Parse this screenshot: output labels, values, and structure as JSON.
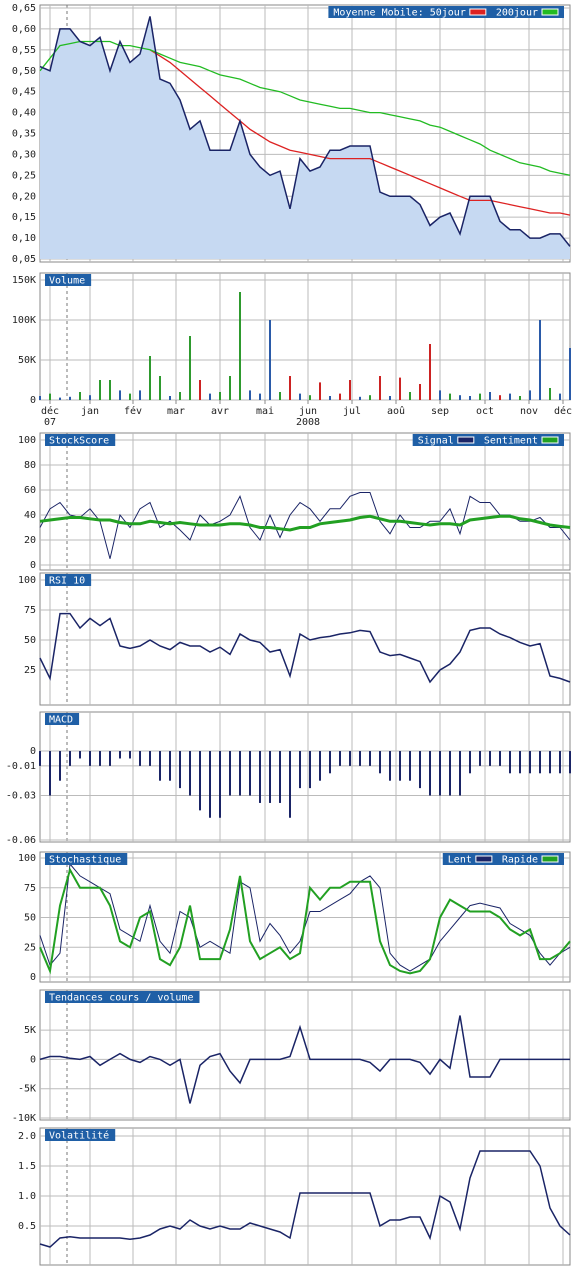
{
  "chart_data": [
    {
      "type": "area",
      "title": "Moyenne Mobile:",
      "color": "#1a2466",
      "fill": "#c6d9f2",
      "legend": "top-right",
      "grid": true,
      "values": [
        0.51,
        0.5,
        0.6,
        0.6,
        0.57,
        0.56,
        0.58,
        0.5,
        0.57,
        0.52,
        0.54,
        0.63,
        0.48,
        0.47,
        0.43,
        0.36,
        0.38,
        0.31,
        0.31,
        0.31,
        0.38,
        0.3,
        0.27,
        0.25,
        0.26,
        0.17,
        0.29,
        0.26,
        0.27,
        0.31,
        0.31,
        0.32,
        0.32,
        0.32,
        0.21,
        0.2,
        0.2,
        0.2,
        0.18,
        0.13,
        0.15,
        0.16,
        0.11,
        0.2,
        0.2,
        0.2,
        0.14,
        0.12,
        0.12,
        0.1,
        0.1,
        0.11,
        0.11,
        0.08
      ],
      "series": [
        {
          "name": "50jour",
          "color": "#dd2222",
          "values": [
            null,
            null,
            null,
            null,
            null,
            null,
            null,
            null,
            null,
            null,
            null,
            0.55,
            0.535,
            0.52,
            0.5,
            0.48,
            0.46,
            0.44,
            0.42,
            0.4,
            0.38,
            0.36,
            0.345,
            0.33,
            0.32,
            0.31,
            0.305,
            0.3,
            0.295,
            0.29,
            0.29,
            0.29,
            0.29,
            0.29,
            0.28,
            0.27,
            0.26,
            0.25,
            0.24,
            0.23,
            0.22,
            0.21,
            0.2,
            0.19,
            0.19,
            0.19,
            0.185,
            0.18,
            0.175,
            0.17,
            0.165,
            0.16,
            0.16,
            0.155
          ]
        },
        {
          "name": "200jour",
          "color": "#22bb22",
          "values": [
            0.5,
            0.53,
            0.56,
            0.565,
            0.57,
            0.57,
            0.57,
            0.57,
            0.56,
            0.56,
            0.555,
            0.55,
            0.54,
            0.53,
            0.52,
            0.515,
            0.51,
            0.5,
            0.49,
            0.485,
            0.48,
            0.47,
            0.46,
            0.455,
            0.45,
            0.44,
            0.43,
            0.425,
            0.42,
            0.415,
            0.41,
            0.41,
            0.405,
            0.4,
            0.4,
            0.395,
            0.39,
            0.385,
            0.38,
            0.37,
            0.365,
            0.355,
            0.345,
            0.335,
            0.325,
            0.31,
            0.3,
            0.29,
            0.28,
            0.275,
            0.27,
            0.26,
            0.255,
            0.25
          ]
        }
      ],
      "ylim": [
        0.05,
        0.65
      ],
      "yticks": [
        {
          "value": 0.05,
          "label": "0,05"
        },
        {
          "value": 0.1,
          "label": "0,10"
        },
        {
          "value": 0.15,
          "label": "0,15"
        },
        {
          "value": 0.2,
          "label": "0,20"
        },
        {
          "value": 0.25,
          "label": "0,25"
        },
        {
          "value": 0.3,
          "label": "0,30"
        },
        {
          "value": 0.35,
          "label": "0,35"
        },
        {
          "value": 0.4,
          "label": "0,40"
        },
        {
          "value": 0.45,
          "label": "0,45"
        },
        {
          "value": 0.5,
          "label": "0,50"
        },
        {
          "value": 0.55,
          "label": "0,55"
        },
        {
          "value": 0.6,
          "label": "0,60"
        },
        {
          "value": 0.65,
          "label": "0,65"
        }
      ]
    },
    {
      "type": "bar",
      "title": "Volume",
      "grid": true,
      "values": [
        5000,
        8000,
        3000,
        4000,
        10000,
        6000,
        25000,
        25000,
        12000,
        8000,
        12000,
        55000,
        30000,
        5000,
        10000,
        80000,
        25000,
        8000,
        10000,
        30000,
        135000,
        12000,
        8000,
        100000,
        10000,
        30000,
        8000,
        6000,
        22000,
        5000,
        8000,
        25000,
        4000,
        6000,
        30000,
        5000,
        28000,
        10000,
        20000,
        70000,
        12000,
        8000,
        6000,
        5000,
        8000,
        10000,
        6000,
        8000,
        5000,
        12000,
        100000,
        15000,
        8000,
        65000
      ],
      "colors": [
        "#2a5aa8",
        "#2e9a2e",
        "#2a5aa8",
        "#2a5aa8",
        "#2e9a2e",
        "#2a5aa8",
        "#2e9a2e",
        "#2e9a2e",
        "#2a5aa8",
        "#2e9a2e",
        "#2a5aa8",
        "#2e9a2e",
        "#2e9a2e",
        "#2a5aa8",
        "#2e9a2e",
        "#2e9a2e",
        "#cc2222",
        "#2a5aa8",
        "#2e9a2e",
        "#2e9a2e",
        "#2e9a2e",
        "#2a5aa8",
        "#2a5aa8",
        "#2a5aa8",
        "#2e9a2e",
        "#cc2222",
        "#2a5aa8",
        "#2e9a2e",
        "#cc2222",
        "#2a5aa8",
        "#cc2222",
        "#cc2222",
        "#2a5aa8",
        "#2e9a2e",
        "#cc2222",
        "#2a5aa8",
        "#cc2222",
        "#2e9a2e",
        "#cc2222",
        "#cc2222",
        "#2a5aa8",
        "#2e9a2e",
        "#2a5aa8",
        "#2a5aa8",
        "#2e9a2e",
        "#2a5aa8",
        "#cc2222",
        "#2a5aa8",
        "#2e9a2e",
        "#2a5aa8",
        "#2a5aa8",
        "#2e9a2e",
        "#2a5aa8",
        "#2a5aa8"
      ],
      "ylim": [
        0,
        150000
      ],
      "yticks": [
        0,
        {
          "value": 50000,
          "label": "50K"
        },
        {
          "value": 100000,
          "label": "100K"
        },
        {
          "value": 150000,
          "label": "150K"
        }
      ],
      "xticks": [
        {
          "value": 1,
          "label": "déc",
          "sublabel": "07"
        },
        {
          "value": 5,
          "label": "jan"
        },
        {
          "value": 9.3,
          "label": "fév"
        },
        {
          "value": 13.6,
          "label": "mar"
        },
        {
          "value": 18,
          "label": "avr"
        },
        {
          "value": 22.5,
          "label": "mai"
        },
        {
          "value": 26.8,
          "label": "jun",
          "sublabel": "2008"
        },
        {
          "value": 31.2,
          "label": "jul"
        },
        {
          "value": 35.6,
          "label": "aoû"
        },
        {
          "value": 40,
          "label": "sep"
        },
        {
          "value": 44.5,
          "label": "oct"
        },
        {
          "value": 48.9,
          "label": "nov"
        },
        {
          "value": 52.3,
          "label": "déc"
        }
      ]
    },
    {
      "type": "line",
      "title": "StockScore",
      "legend": "top-right",
      "grid": true,
      "series": [
        {
          "name": "Signal",
          "color": "#1a2466",
          "width": 1,
          "values": [
            30,
            45,
            50,
            40,
            38,
            45,
            35,
            5,
            40,
            30,
            45,
            50,
            30,
            35,
            28,
            20,
            40,
            32,
            35,
            40,
            55,
            30,
            20,
            40,
            22,
            40,
            50,
            45,
            35,
            45,
            45,
            55,
            58,
            58,
            35,
            25,
            40,
            30,
            30,
            35,
            35,
            45,
            25,
            55,
            50,
            50,
            40,
            40,
            35,
            35,
            38,
            30,
            30,
            20
          ]
        },
        {
          "name": "Sentiment",
          "color": "#22a022",
          "width": 3,
          "values": [
            35,
            36,
            37,
            38,
            38,
            37,
            36,
            36,
            34,
            33,
            33,
            35,
            34,
            33,
            34,
            33,
            32,
            32,
            32,
            33,
            33,
            32,
            30,
            30,
            29,
            28,
            30,
            30,
            33,
            34,
            35,
            36,
            38,
            39,
            37,
            35,
            35,
            34,
            33,
            32,
            33,
            33,
            32,
            36,
            37,
            38,
            39,
            39,
            37,
            36,
            34,
            32,
            31,
            30
          ]
        }
      ],
      "ylim": [
        0,
        100
      ],
      "yticks": [
        0,
        20,
        40,
        60,
        80,
        100
      ]
    },
    {
      "type": "line",
      "title": "RSI 10",
      "color": "#1a2466",
      "grid": true,
      "values": [
        35,
        18,
        72,
        72,
        60,
        68,
        62,
        68,
        45,
        43,
        45,
        50,
        45,
        42,
        48,
        45,
        45,
        40,
        44,
        38,
        55,
        50,
        48,
        40,
        42,
        20,
        55,
        50,
        52,
        53,
        55,
        56,
        58,
        57,
        40,
        37,
        38,
        35,
        32,
        15,
        25,
        30,
        40,
        58,
        60,
        60,
        55,
        52,
        48,
        45,
        47,
        20,
        18,
        15
      ],
      "ylim": [
        0,
        100
      ],
      "yticks": [
        25,
        50,
        75,
        100
      ]
    },
    {
      "type": "bar",
      "title": "MACD",
      "color": "#1a2466",
      "grid": true,
      "values": [
        -0.01,
        -0.03,
        -0.02,
        -0.01,
        -0.005,
        -0.01,
        -0.01,
        -0.01,
        -0.005,
        -0.005,
        -0.01,
        -0.01,
        -0.02,
        -0.02,
        -0.025,
        -0.03,
        -0.04,
        -0.045,
        -0.045,
        -0.03,
        -0.03,
        -0.03,
        -0.035,
        -0.035,
        -0.035,
        -0.045,
        -0.025,
        -0.025,
        -0.02,
        -0.015,
        -0.01,
        -0.01,
        -0.01,
        -0.01,
        -0.015,
        -0.02,
        -0.02,
        -0.02,
        -0.025,
        -0.03,
        -0.03,
        -0.03,
        -0.03,
        -0.015,
        -0.01,
        -0.01,
        -0.01,
        -0.015,
        -0.015,
        -0.015,
        -0.015,
        -0.015,
        -0.015,
        -0.015
      ],
      "ylim": [
        -0.06,
        0.025
      ],
      "yticks": [
        0,
        -0.01,
        -0.03,
        -0.06
      ]
    },
    {
      "type": "line",
      "title": "Stochastique",
      "legend": "top-right",
      "grid": true,
      "series": [
        {
          "name": "Lent",
          "color": "#1a2466",
          "width": 1,
          "values": [
            35,
            10,
            20,
            95,
            85,
            80,
            75,
            70,
            40,
            35,
            30,
            60,
            30,
            20,
            55,
            50,
            25,
            30,
            25,
            20,
            80,
            75,
            30,
            45,
            35,
            20,
            30,
            55,
            55,
            60,
            65,
            70,
            80,
            85,
            75,
            20,
            10,
            5,
            10,
            15,
            30,
            40,
            50,
            60,
            62,
            60,
            58,
            45,
            40,
            35,
            20,
            10,
            20,
            25
          ]
        },
        {
          "name": "Rapide",
          "color": "#22a022",
          "width": 2,
          "values": [
            25,
            5,
            60,
            90,
            75,
            75,
            75,
            60,
            30,
            25,
            50,
            55,
            15,
            10,
            25,
            60,
            15,
            15,
            15,
            40,
            85,
            30,
            15,
            20,
            25,
            15,
            20,
            75,
            65,
            75,
            75,
            80,
            80,
            80,
            30,
            10,
            5,
            3,
            5,
            15,
            50,
            65,
            60,
            55,
            55,
            55,
            50,
            40,
            35,
            40,
            15,
            15,
            20,
            30
          ]
        }
      ],
      "ylim": [
        0,
        100
      ],
      "yticks": [
        0,
        25,
        50,
        75,
        100
      ]
    },
    {
      "type": "line",
      "title": "Tendances cours / volume",
      "color": "#1a2466",
      "grid": true,
      "values": [
        0,
        500,
        500,
        200,
        0,
        500,
        -1000,
        0,
        1000,
        0,
        -500,
        500,
        0,
        -1000,
        0,
        -7500,
        -1000,
        500,
        1000,
        -2000,
        -4000,
        0,
        0,
        0,
        0,
        500,
        5500,
        0,
        0,
        0,
        0,
        0,
        0,
        -500,
        -2000,
        0,
        0,
        0,
        -500,
        -2500,
        0,
        -1500,
        7500,
        -3000,
        -3000,
        -3000,
        0,
        0,
        0,
        0,
        0,
        0,
        0,
        0
      ],
      "ylim": [
        -10000,
        11000
      ],
      "yticks": [
        {
          "value": -10000,
          "label": "-10K"
        },
        {
          "value": -5000,
          "label": "-5K"
        },
        0,
        {
          "value": 5000,
          "label": "5K"
        }
      ]
    },
    {
      "type": "line",
      "title": "Volatilité",
      "color": "#1a2466",
      "grid": true,
      "values": [
        0.2,
        0.15,
        0.3,
        0.32,
        0.3,
        0.3,
        0.3,
        0.3,
        0.3,
        0.28,
        0.3,
        0.35,
        0.45,
        0.5,
        0.45,
        0.6,
        0.5,
        0.45,
        0.5,
        0.45,
        0.45,
        0.55,
        0.5,
        0.45,
        0.4,
        0.3,
        1.05,
        1.05,
        1.05,
        1.05,
        1.05,
        1.05,
        1.05,
        1.05,
        0.5,
        0.6,
        0.6,
        0.65,
        0.65,
        0.3,
        1.0,
        0.9,
        0.45,
        1.3,
        1.75,
        1.75,
        1.75,
        1.75,
        1.75,
        1.75,
        1.5,
        0.8,
        0.5,
        0.35
      ],
      "ylim": [
        -0.1,
        2.1
      ],
      "yticks": [
        0.5,
        {
          "value": 1,
          "label": "1.0"
        },
        1.5,
        {
          "value": 2,
          "label": "2.0"
        }
      ]
    }
  ]
}
